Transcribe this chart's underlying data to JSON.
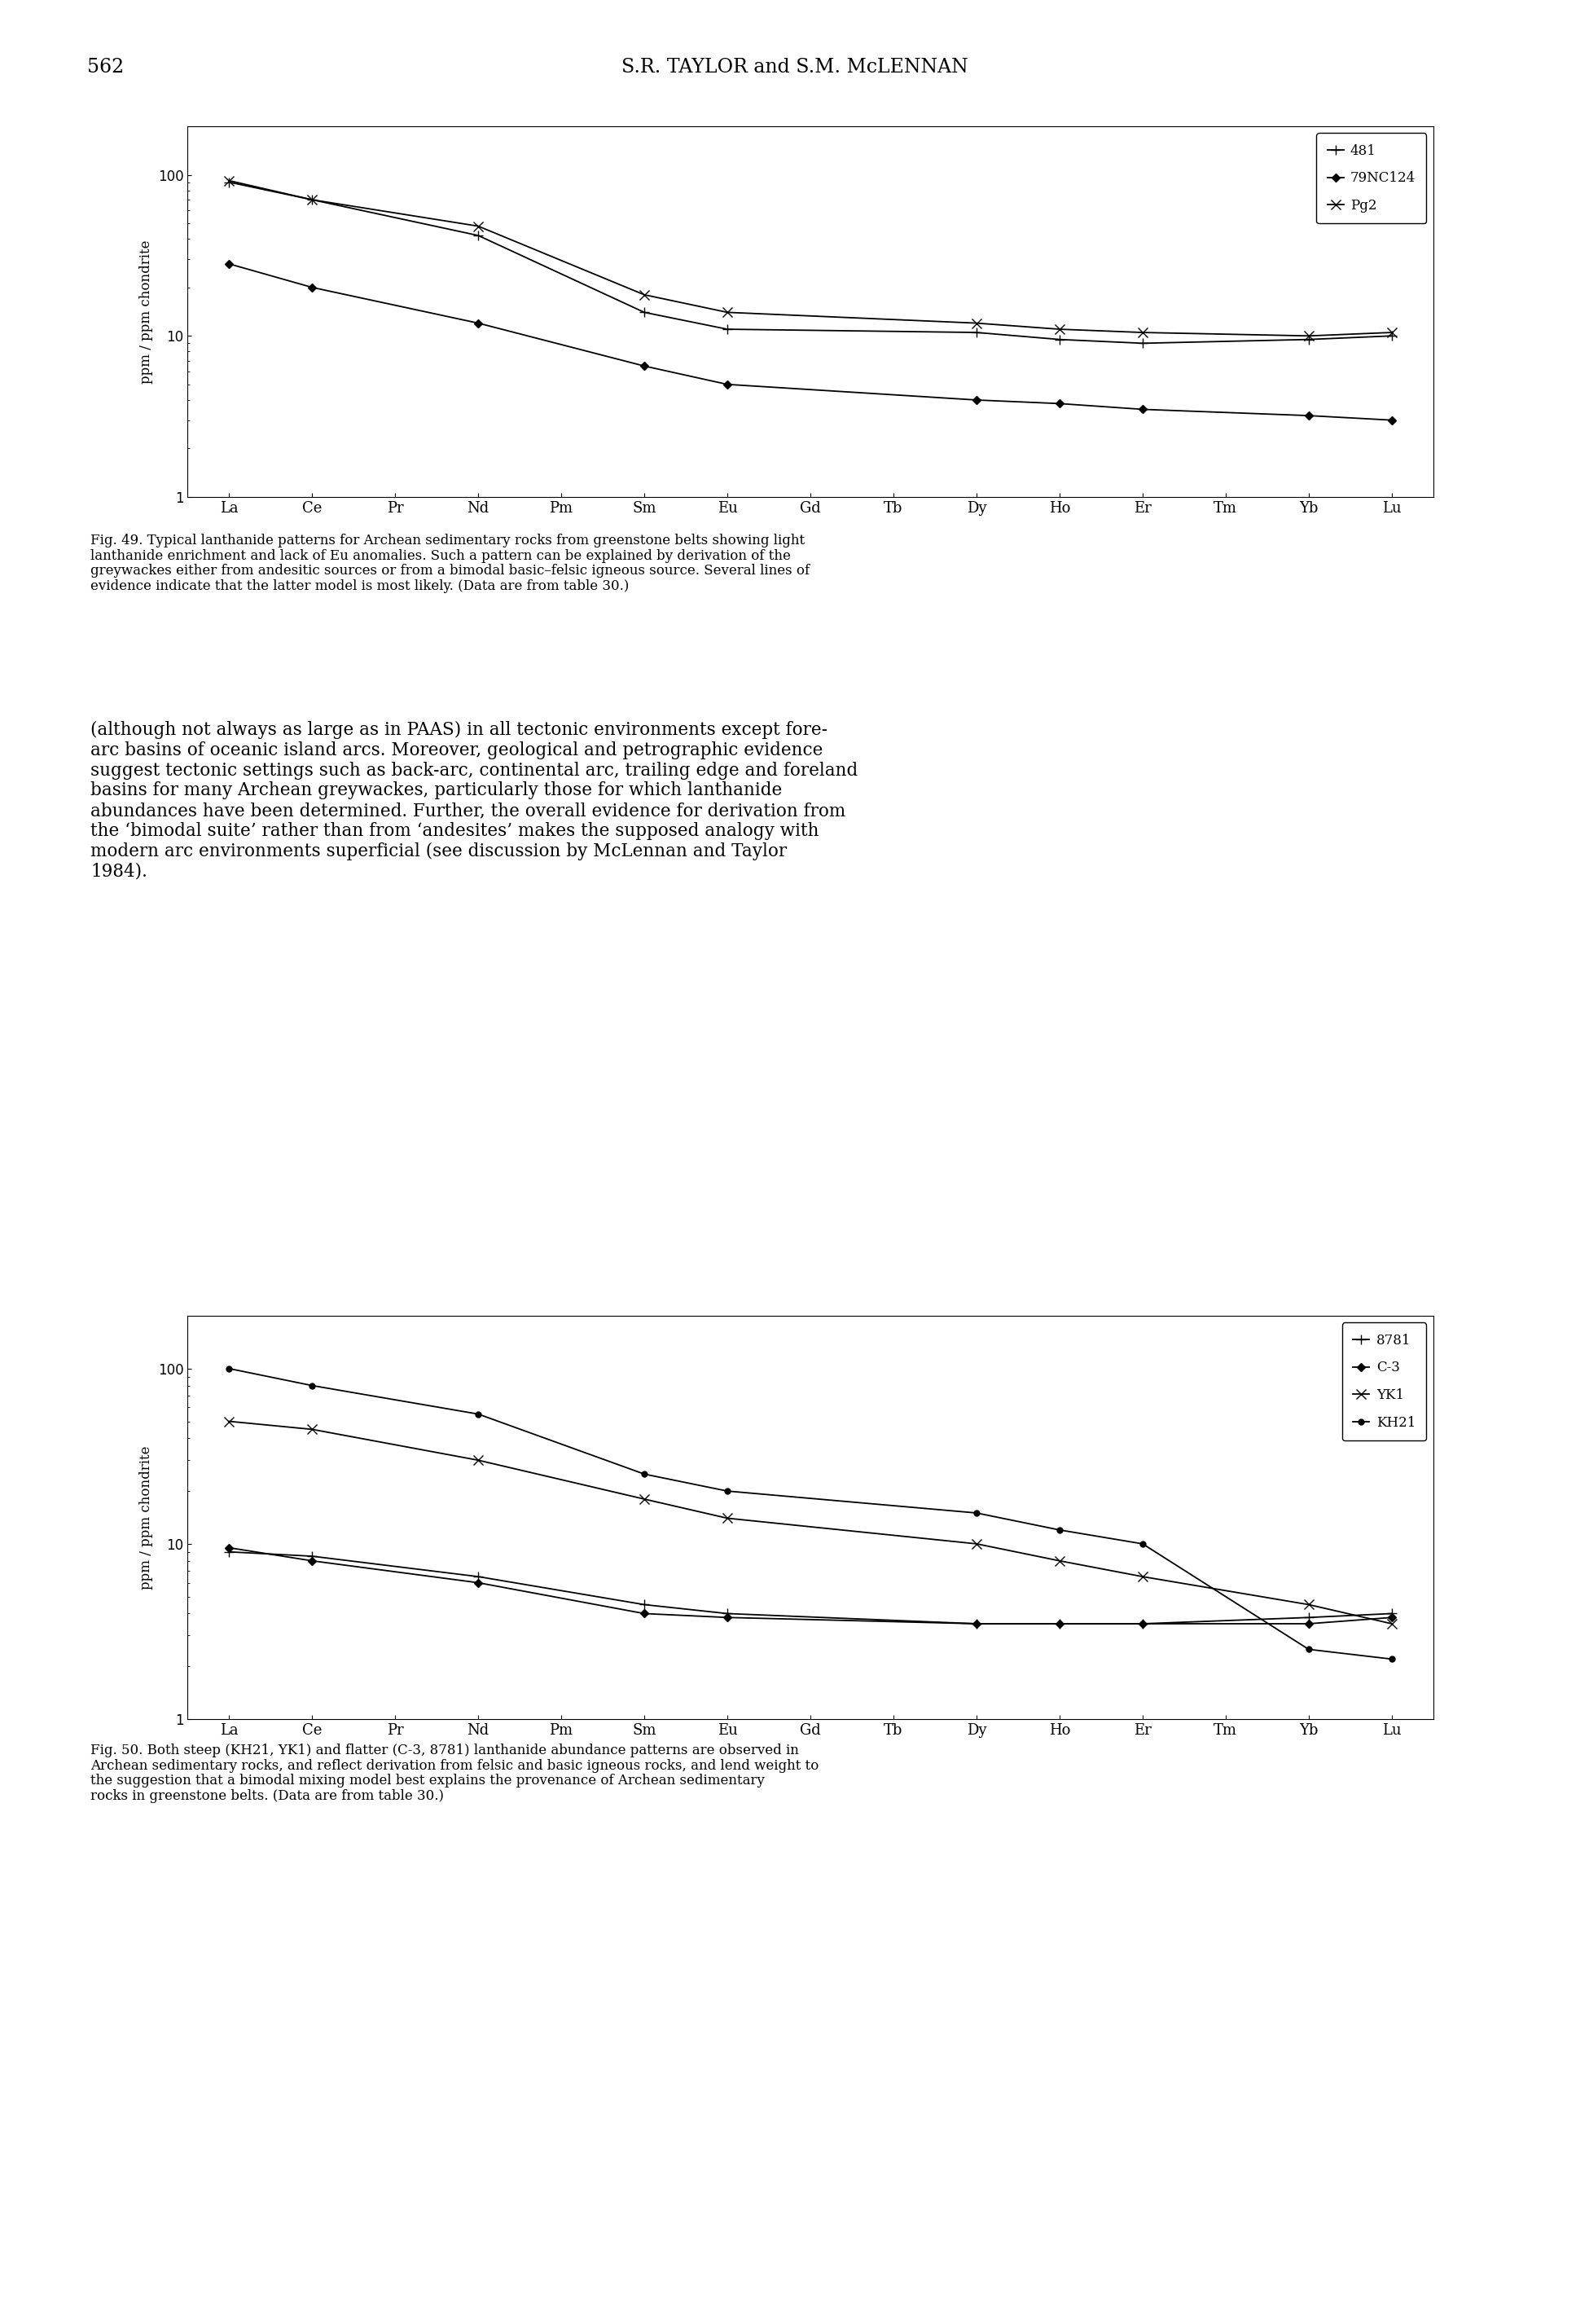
{
  "page_number": "562",
  "page_header": "S.R. TAYLOR and S.M. McLENNAN",
  "x_labels": [
    "La",
    "Ce",
    "Pr",
    "Nd",
    "Pm",
    "Sm",
    "Eu",
    "Gd",
    "Tb",
    "Dy",
    "Ho",
    "Er",
    "Tm",
    "Yb",
    "Lu"
  ],
  "ylabel": "ppm / ppm chondrite",
  "fig49_caption": "Fig. 49. Typical lanthanide patterns for Archean sedimentary rocks from greenstone belts showing light lanthanide enrichment and lack of Eu anomalies. Such a pattern can be explained by derivation of the greywackes either from andesitic sources or from a bimodal basic–felsic igneous source. Several lines of evidence indicate that the latter model is most likely. (Data are from table 30.)",
  "fig49_481": [
    90,
    70,
    null,
    42,
    null,
    14,
    11,
    null,
    null,
    10.5,
    9.5,
    9.0,
    null,
    9.5,
    10.0
  ],
  "fig49_79NC124": [
    28,
    20,
    null,
    12,
    null,
    6.5,
    5.0,
    null,
    null,
    4.0,
    3.8,
    3.5,
    null,
    3.2,
    3.0
  ],
  "fig49_Pg2": [
    92,
    70,
    null,
    48,
    null,
    18,
    14,
    null,
    null,
    12,
    11,
    10.5,
    null,
    10.0,
    10.5
  ],
  "paragraph": "(although not always as large as in PAAS) in all tectonic environments except fore-arc basins of oceanic island arcs. Moreover, geological and petrographic evidence suggest tectonic settings such as back-arc, continental arc, trailing edge and foreland basins for many Archean greywackes, particularly those for which lanthanide abundances have been determined. Further, the overall evidence for derivation from the ‘bimodal suite’ rather than from ‘andesites’ makes the supposed analogy with modern arc environments superficial (see discussion by McLennan and Taylor 1984).",
  "fig50_caption": "Fig. 50. Both steep (KH21, YK1) and flatter (C-3, 8781) lanthanide abundance patterns are observed in Archean sedimentary rocks, and reflect derivation from felsic and basic igneous rocks, and lend weight to the suggestion that a bimodal mixing model best explains the provenance of Archean sedimentary rocks in greenstone belts. (Data are from table 30.)",
  "fig50_8781": [
    9.0,
    8.5,
    null,
    6.5,
    null,
    4.5,
    4.0,
    null,
    null,
    3.5,
    3.5,
    3.5,
    null,
    3.8,
    4.0
  ],
  "fig50_C3": [
    9.5,
    8.0,
    null,
    6.0,
    null,
    4.0,
    3.8,
    null,
    null,
    3.5,
    3.5,
    3.5,
    null,
    3.5,
    3.8
  ],
  "fig50_YK1": [
    50,
    45,
    null,
    30,
    null,
    18,
    14,
    null,
    null,
    10,
    8.0,
    6.5,
    null,
    4.5,
    3.5
  ],
  "fig50_KH21": [
    100,
    80,
    null,
    55,
    null,
    25,
    20,
    null,
    null,
    15,
    12,
    10,
    null,
    2.5,
    2.2
  ]
}
